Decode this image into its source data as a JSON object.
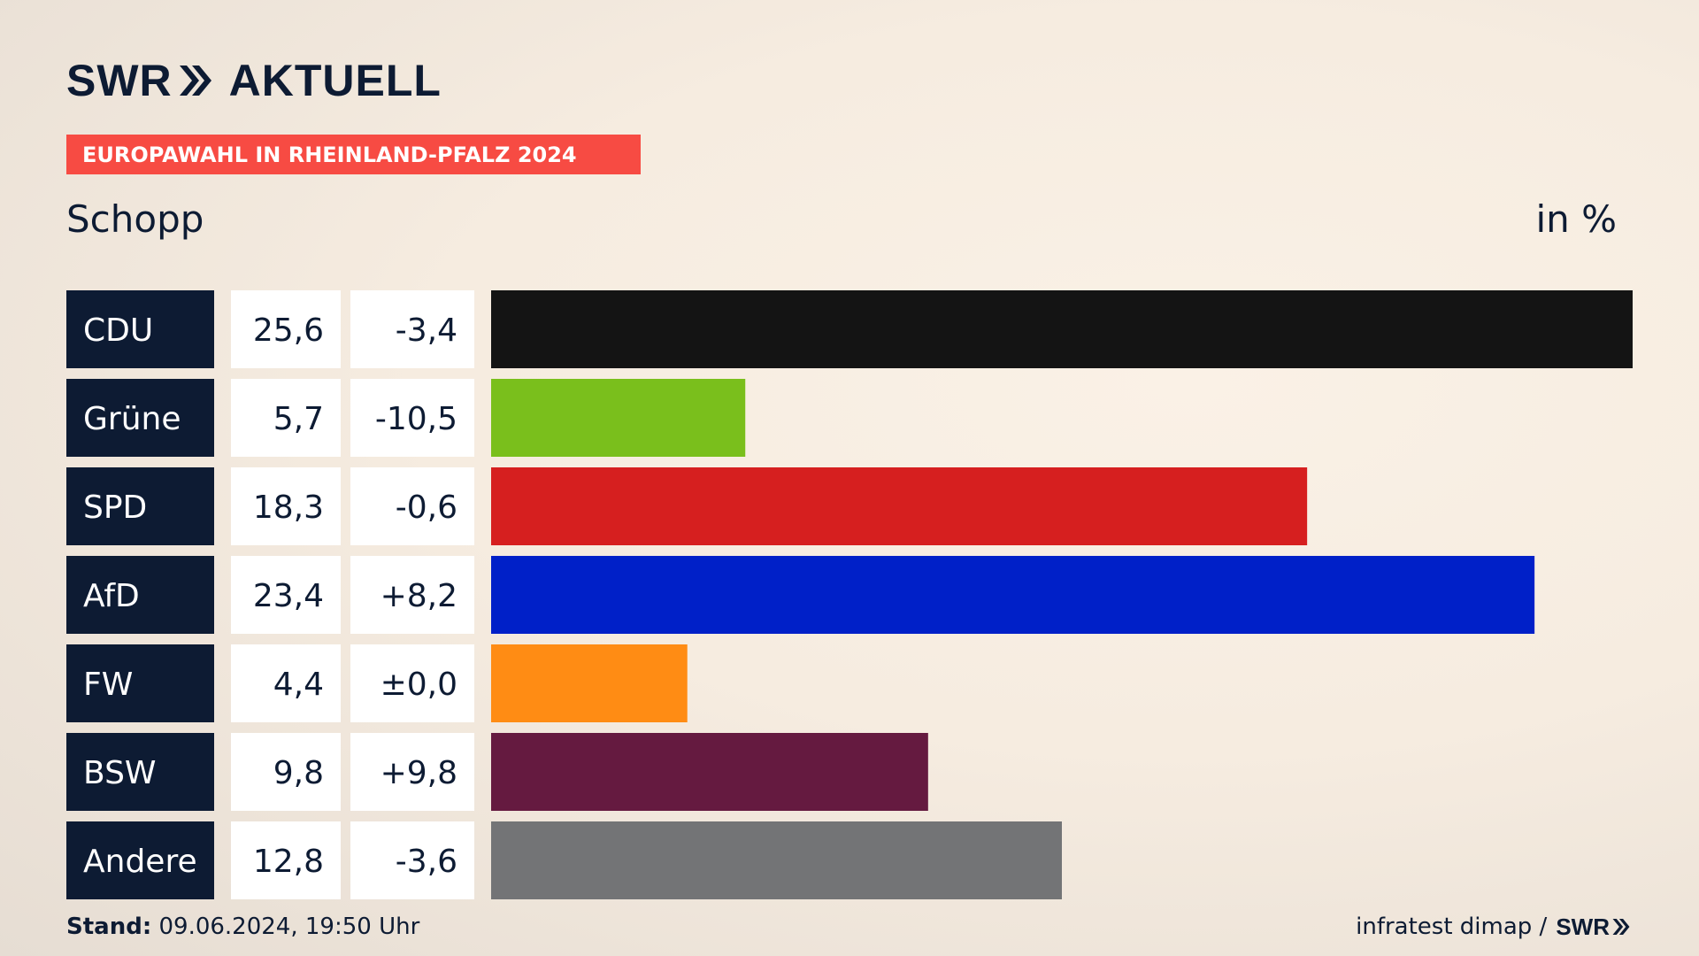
{
  "header": {
    "logo_brand": "SWR",
    "logo_product": "AKTUELL",
    "banner": "EUROPAWAHL IN RHEINLAND-PFALZ 2024",
    "subtitle": "Schopp",
    "unit": "in %"
  },
  "colors": {
    "banner": "#f74b43",
    "navy": "#0d1b33",
    "cell_bg": "#ffffff"
  },
  "chart_data": {
    "type": "bar",
    "orientation": "horizontal",
    "title": "Schopp",
    "unit": "in %",
    "categories": [
      "CDU",
      "Grüne",
      "SPD",
      "AfD",
      "FW",
      "BSW",
      "Andere"
    ],
    "values": [
      25.6,
      5.7,
      18.3,
      23.4,
      4.4,
      9.8,
      12.8
    ],
    "value_labels": [
      "25,6",
      "5,7",
      "18,3",
      "23,4",
      "4,4",
      "9,8",
      "12,8"
    ],
    "change_labels": [
      "-3,4",
      "-10,5",
      "-0,6",
      "+8,2",
      "±0,0",
      "+9,8",
      "-3,6"
    ],
    "changes": [
      -3.4,
      -10.5,
      -0.6,
      8.2,
      0.0,
      9.8,
      -3.6
    ],
    "bar_colors": [
      "#141414",
      "#7abf1c",
      "#d61f1f",
      "#0020c8",
      "#ff8c14",
      "#651a40",
      "#737476"
    ],
    "xlim": [
      0,
      25.6
    ]
  },
  "footer": {
    "stand_label": "Stand:",
    "stand_value": "09.06.2024, 19:50 Uhr",
    "source": "infratest dimap /",
    "source_logo": "SWR"
  }
}
